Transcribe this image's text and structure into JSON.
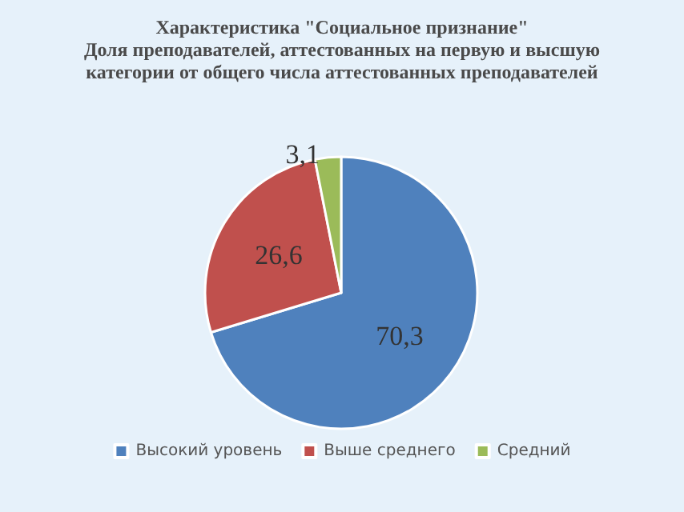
{
  "chart_data": {
    "type": "pie",
    "title": "Характеристика \"Социальное признание\"\nДоля преподавателей, аттестованных на первую и высшую\nкатегории от общего числа аттестованных преподавателей",
    "categories": [
      "Высокий уровень",
      "Выше среднего",
      "Средний"
    ],
    "values": [
      70.3,
      26.6,
      3.1
    ],
    "colors": [
      "#4f81bd",
      "#c0504d",
      "#9bbb59"
    ],
    "value_labels": [
      "70,3",
      "26,6",
      "3,1"
    ],
    "legend": "bottom"
  }
}
